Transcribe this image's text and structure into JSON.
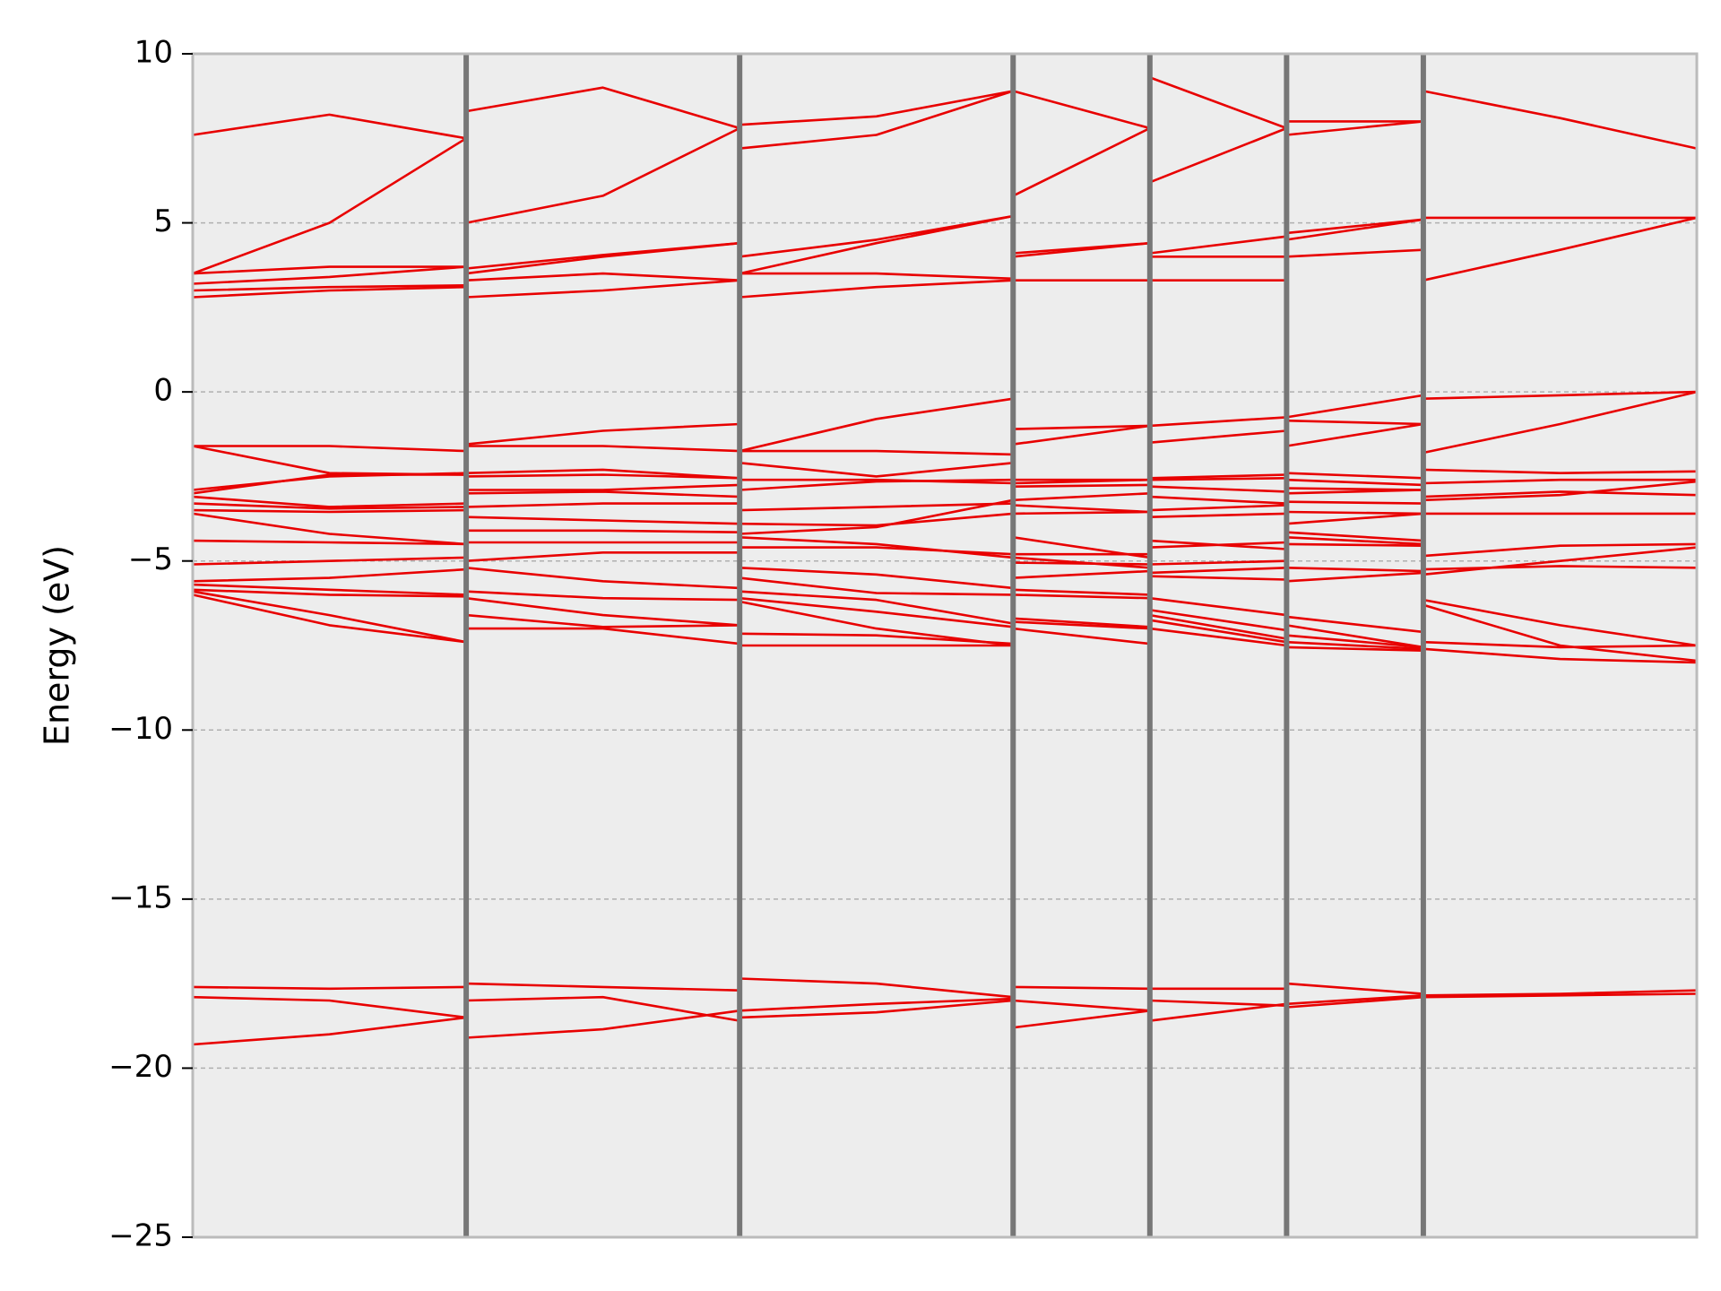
{
  "chart_data": {
    "type": "line",
    "title": "",
    "xlabel": "",
    "ylabel": "Energy (eV)",
    "ylim": [
      -25,
      10
    ],
    "xlim": [
      0,
      11
    ],
    "grid": true,
    "yticks": [
      {
        "value": 10,
        "label": "10"
      },
      {
        "value": 5,
        "label": "5"
      },
      {
        "value": 0,
        "label": "0"
      },
      {
        "value": -5,
        "label": "−5"
      },
      {
        "value": -10,
        "label": "−10"
      },
      {
        "value": -15,
        "label": "−15"
      },
      {
        "value": -20,
        "label": "−20"
      },
      {
        "value": -25,
        "label": "−25"
      }
    ],
    "kpoint_separators": [
      2,
      4,
      6,
      7,
      8,
      9
    ],
    "segments": [
      {
        "x": [
          0,
          1,
          2
        ],
        "bands": [
          [
            -19.3,
            -19.0,
            -18.5
          ],
          [
            -17.9,
            -18.0,
            -18.5
          ],
          [
            -17.6,
            -17.65,
            -17.6
          ],
          [
            -6.0,
            -6.9,
            -7.4
          ],
          [
            -5.9,
            -6.6,
            -7.4
          ],
          [
            -5.85,
            -6.0,
            -6.05
          ],
          [
            -5.7,
            -5.85,
            -6.0
          ],
          [
            -5.6,
            -5.5,
            -5.25
          ],
          [
            -5.1,
            -5.0,
            -4.9
          ],
          [
            -4.4,
            -4.45,
            -4.5
          ],
          [
            -3.6,
            -4.2,
            -4.5
          ],
          [
            -3.5,
            -3.55,
            -3.5
          ],
          [
            -3.3,
            -3.45,
            -3.4
          ],
          [
            -3.1,
            -3.4,
            -3.3
          ],
          [
            -3.0,
            -2.45,
            -2.45
          ],
          [
            -2.9,
            -2.5,
            -2.4
          ],
          [
            -1.6,
            -2.4,
            -2.45
          ],
          [
            -1.6,
            -1.6,
            -1.75
          ],
          [
            2.8,
            3.0,
            3.1
          ],
          [
            3.0,
            3.1,
            3.15
          ],
          [
            3.2,
            3.4,
            3.7
          ],
          [
            3.5,
            3.7,
            3.7
          ],
          [
            3.5,
            5.0,
            7.5
          ],
          [
            7.6,
            8.2,
            7.5
          ]
        ]
      },
      {
        "x": [
          2,
          3,
          4
        ],
        "bands": [
          [
            -19.1,
            -18.85,
            -18.3
          ],
          [
            -18.0,
            -17.9,
            -18.6
          ],
          [
            -17.5,
            -17.6,
            -17.7
          ],
          [
            -7.0,
            -7.0,
            -7.45
          ],
          [
            -6.6,
            -6.95,
            -6.9
          ],
          [
            -6.1,
            -6.6,
            -6.9
          ],
          [
            -5.9,
            -6.1,
            -6.15
          ],
          [
            -5.2,
            -5.6,
            -5.8
          ],
          [
            -5.0,
            -4.75,
            -4.75
          ],
          [
            -4.45,
            -4.45,
            -4.45
          ],
          [
            -4.1,
            -4.1,
            -4.15
          ],
          [
            -3.7,
            -3.8,
            -3.9
          ],
          [
            -3.4,
            -3.3,
            -3.3
          ],
          [
            -3.0,
            -2.95,
            -3.1
          ],
          [
            -2.9,
            -2.9,
            -2.75
          ],
          [
            -2.5,
            -2.45,
            -2.55
          ],
          [
            -2.4,
            -2.3,
            -2.55
          ],
          [
            -1.6,
            -1.6,
            -1.75
          ],
          [
            -1.55,
            -1.15,
            -0.95
          ],
          [
            2.8,
            3.0,
            3.3
          ],
          [
            3.3,
            3.5,
            3.3
          ],
          [
            3.5,
            4.0,
            4.4
          ],
          [
            3.65,
            4.05,
            4.4
          ],
          [
            5.0,
            5.8,
            7.8
          ],
          [
            8.3,
            9.0,
            7.8
          ]
        ]
      },
      {
        "x": [
          4,
          5,
          6
        ],
        "bands": [
          [
            -18.5,
            -18.35,
            -18.0
          ],
          [
            -18.3,
            -18.1,
            -17.95
          ],
          [
            -17.35,
            -17.5,
            -17.9
          ],
          [
            -7.5,
            -7.5,
            -7.5
          ],
          [
            -7.15,
            -7.2,
            -7.45
          ],
          [
            -6.2,
            -7.0,
            -7.5
          ],
          [
            -6.1,
            -6.5,
            -6.95
          ],
          [
            -5.9,
            -6.15,
            -6.85
          ],
          [
            -5.5,
            -5.95,
            -6.0
          ],
          [
            -5.2,
            -5.4,
            -5.8
          ],
          [
            -4.6,
            -4.6,
            -4.8
          ],
          [
            -4.3,
            -4.5,
            -4.9
          ],
          [
            -4.2,
            -4.0,
            -3.2
          ],
          [
            -3.9,
            -3.95,
            -3.6
          ],
          [
            -3.5,
            -3.4,
            -3.3
          ],
          [
            -2.9,
            -2.65,
            -2.6
          ],
          [
            -2.6,
            -2.6,
            -2.7
          ],
          [
            -2.1,
            -2.5,
            -2.1
          ],
          [
            -1.75,
            -1.75,
            -1.85
          ],
          [
            -1.75,
            -0.8,
            -0.2
          ],
          [
            2.8,
            3.1,
            3.3
          ],
          [
            3.5,
            3.5,
            3.35
          ],
          [
            3.5,
            4.4,
            5.2
          ],
          [
            4.0,
            4.5,
            5.2
          ],
          [
            7.2,
            7.6,
            8.9
          ],
          [
            7.9,
            8.15,
            8.9
          ]
        ]
      },
      {
        "x": [
          6,
          7
        ],
        "bands": [
          [
            -18.8,
            -18.3
          ],
          [
            -18.0,
            -18.3
          ],
          [
            -17.6,
            -17.65
          ],
          [
            -7.0,
            -7.45
          ],
          [
            -6.8,
            -7.0
          ],
          [
            -6.7,
            -6.95
          ],
          [
            -6.0,
            -6.1
          ],
          [
            -5.85,
            -6.0
          ],
          [
            -5.5,
            -5.3
          ],
          [
            -5.05,
            -5.1
          ],
          [
            -4.9,
            -5.2
          ],
          [
            -4.8,
            -4.8
          ],
          [
            -4.3,
            -4.9
          ],
          [
            -3.6,
            -3.55
          ],
          [
            -3.35,
            -3.55
          ],
          [
            -3.2,
            -3.0
          ],
          [
            -2.8,
            -2.75
          ],
          [
            -2.7,
            -2.6
          ],
          [
            -2.6,
            -2.6
          ],
          [
            -1.55,
            -1.0
          ],
          [
            -1.1,
            -1.0
          ],
          [
            3.3,
            3.3
          ],
          [
            4.0,
            4.4
          ],
          [
            4.1,
            4.4
          ],
          [
            5.8,
            7.8
          ],
          [
            8.9,
            7.8
          ]
        ]
      },
      {
        "x": [
          7,
          8
        ],
        "bands": [
          [
            -18.6,
            -18.1
          ],
          [
            -18.0,
            -18.15
          ],
          [
            -17.65,
            -17.65
          ],
          [
            -7.0,
            -7.5
          ],
          [
            -6.75,
            -7.4
          ],
          [
            -6.6,
            -7.3
          ],
          [
            -6.45,
            -7.05
          ],
          [
            -6.1,
            -6.6
          ],
          [
            -5.45,
            -5.55
          ],
          [
            -5.35,
            -5.2
          ],
          [
            -5.1,
            -5.0
          ],
          [
            -4.6,
            -4.45
          ],
          [
            -4.4,
            -4.65
          ],
          [
            -3.7,
            -3.6
          ],
          [
            -3.5,
            -3.35
          ],
          [
            -3.1,
            -3.3
          ],
          [
            -2.8,
            -2.95
          ],
          [
            -2.6,
            -2.55
          ],
          [
            -2.55,
            -2.45
          ],
          [
            -1.5,
            -1.15
          ],
          [
            -1.0,
            -0.75
          ],
          [
            3.3,
            3.3
          ],
          [
            4.0,
            4.0
          ],
          [
            4.1,
            4.6
          ],
          [
            6.2,
            7.8
          ],
          [
            9.3,
            7.8
          ]
        ]
      },
      {
        "x": [
          8,
          9
        ],
        "bands": [
          [
            -18.2,
            -17.9
          ],
          [
            -18.1,
            -17.85
          ],
          [
            -17.5,
            -17.8
          ],
          [
            -7.55,
            -7.65
          ],
          [
            -7.4,
            -7.6
          ],
          [
            -7.2,
            -7.55
          ],
          [
            -6.9,
            -7.55
          ],
          [
            -6.65,
            -7.1
          ],
          [
            -5.6,
            -5.35
          ],
          [
            -5.2,
            -5.3
          ],
          [
            -4.5,
            -4.55
          ],
          [
            -4.3,
            -4.5
          ],
          [
            -4.15,
            -4.4
          ],
          [
            -3.9,
            -3.6
          ],
          [
            -3.55,
            -3.6
          ],
          [
            -3.25,
            -3.3
          ],
          [
            -3.0,
            -2.9
          ],
          [
            -2.85,
            -2.9
          ],
          [
            -2.6,
            -2.75
          ],
          [
            -2.4,
            -2.55
          ],
          [
            -1.6,
            -0.95
          ],
          [
            -0.85,
            -0.95
          ],
          [
            -0.75,
            -0.1
          ],
          [
            4.0,
            4.2
          ],
          [
            4.5,
            5.1
          ],
          [
            4.7,
            5.1
          ],
          [
            7.6,
            8.0
          ],
          [
            8.0,
            8.0
          ]
        ]
      },
      {
        "x": [
          9,
          10,
          11
        ],
        "bands": [
          [
            -17.9,
            -17.85,
            -17.8
          ],
          [
            -17.85,
            -17.8,
            -17.7
          ],
          [
            -7.6,
            -7.9,
            -8.0
          ],
          [
            -7.4,
            -7.55,
            -7.5
          ],
          [
            -6.3,
            -7.5,
            -7.95
          ],
          [
            -6.15,
            -6.9,
            -7.5
          ],
          [
            -5.4,
            -5.0,
            -4.6
          ],
          [
            -5.25,
            -5.15,
            -5.2
          ],
          [
            -4.85,
            -4.55,
            -4.5
          ],
          [
            -3.6,
            -3.6,
            -3.6
          ],
          [
            -3.2,
            -3.05,
            -2.65
          ],
          [
            -3.1,
            -2.95,
            -3.05
          ],
          [
            -2.7,
            -2.6,
            -2.6
          ],
          [
            -2.3,
            -2.4,
            -2.35
          ],
          [
            -1.8,
            -0.95,
            0.0
          ],
          [
            -0.2,
            -0.1,
            0.0
          ],
          [
            3.3,
            4.2,
            5.15
          ],
          [
            5.15,
            5.15,
            5.15
          ],
          [
            8.9,
            8.1,
            7.2
          ]
        ]
      }
    ],
    "colors": {
      "band": "#e80000",
      "separator": "#777777",
      "background": "#ededed",
      "spine": "#bbbbbb",
      "grid": "#b0b0b0"
    }
  }
}
